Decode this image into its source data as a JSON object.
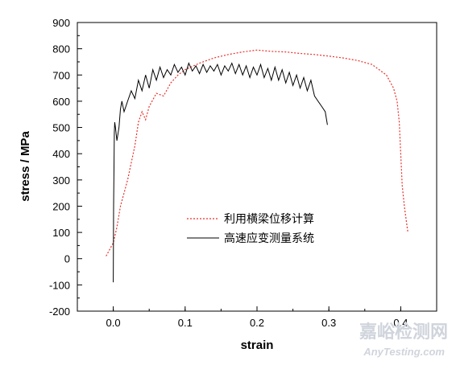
{
  "chart_data": {
    "type": "line",
    "title": "",
    "xlabel": "strain",
    "ylabel": "stress / MPa",
    "xlim": [
      -0.05,
      0.45
    ],
    "ylim": [
      -200,
      900
    ],
    "xticks": [
      "0.0",
      "0.1",
      "0.2",
      "0.3",
      "0.4"
    ],
    "xtick_values": [
      0.0,
      0.1,
      0.2,
      0.3,
      0.4
    ],
    "yticks": [
      "-200",
      "-100",
      "0",
      "100",
      "200",
      "300",
      "400",
      "500",
      "600",
      "700",
      "800",
      "900"
    ],
    "ytick_values": [
      -200,
      -100,
      0,
      100,
      200,
      300,
      400,
      500,
      600,
      700,
      800,
      900
    ],
    "grid": false,
    "legend_position": "center-right",
    "series": [
      {
        "name": "利用横梁位移计算",
        "color": "#e8302a",
        "style": "dotted",
        "x": [
          -0.01,
          0.0,
          0.005,
          0.01,
          0.02,
          0.03,
          0.035,
          0.04,
          0.045,
          0.05,
          0.06,
          0.07,
          0.08,
          0.09,
          0.1,
          0.12,
          0.14,
          0.16,
          0.18,
          0.2,
          0.22,
          0.24,
          0.26,
          0.28,
          0.3,
          0.32,
          0.34,
          0.36,
          0.38,
          0.39,
          0.395,
          0.398,
          0.4,
          0.402,
          0.405,
          0.408,
          0.41
        ],
        "y": [
          10,
          60,
          120,
          200,
          300,
          430,
          520,
          560,
          530,
          580,
          630,
          620,
          670,
          700,
          720,
          745,
          765,
          778,
          788,
          795,
          790,
          788,
          782,
          778,
          772,
          765,
          755,
          740,
          700,
          650,
          600,
          520,
          400,
          280,
          200,
          140,
          100
        ]
      },
      {
        "name": "高速应变测量系统",
        "color": "#000000",
        "style": "solid",
        "x": [
          0.0,
          0.0005,
          0.001,
          0.0015,
          0.002,
          0.003,
          0.005,
          0.008,
          0.01,
          0.012,
          0.015,
          0.02,
          0.025,
          0.03,
          0.035,
          0.04,
          0.045,
          0.05,
          0.055,
          0.06,
          0.065,
          0.07,
          0.075,
          0.08,
          0.085,
          0.09,
          0.095,
          0.1,
          0.105,
          0.11,
          0.115,
          0.12,
          0.125,
          0.13,
          0.135,
          0.14,
          0.145,
          0.15,
          0.155,
          0.16,
          0.165,
          0.17,
          0.175,
          0.18,
          0.185,
          0.19,
          0.195,
          0.2,
          0.205,
          0.21,
          0.215,
          0.22,
          0.225,
          0.23,
          0.235,
          0.24,
          0.245,
          0.25,
          0.255,
          0.26,
          0.265,
          0.27,
          0.275,
          0.28,
          0.285,
          0.29,
          0.295,
          0.298
        ],
        "y": [
          -90,
          200,
          350,
          480,
          520,
          500,
          450,
          500,
          570,
          600,
          560,
          600,
          640,
          610,
          680,
          640,
          700,
          650,
          720,
          680,
          730,
          690,
          720,
          700,
          740,
          710,
          730,
          700,
          745,
          715,
          735,
          705,
          740,
          710,
          735,
          715,
          740,
          700,
          735,
          715,
          745,
          705,
          740,
          700,
          735,
          690,
          730,
          700,
          740,
          690,
          725,
          680,
          730,
          680,
          720,
          670,
          710,
          660,
          700,
          650,
          690,
          640,
          680,
          620,
          600,
          580,
          560,
          510
        ]
      }
    ]
  },
  "watermark": {
    "cn": "嘉峪检测网",
    "en": "AnyTesting.com"
  }
}
